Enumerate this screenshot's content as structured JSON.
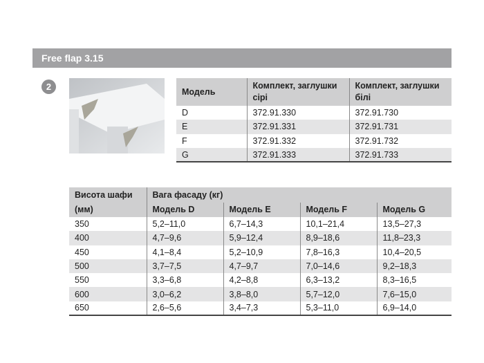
{
  "title": "Free flap 3.15",
  "badge": "2",
  "models_table": {
    "headers": [
      "Модель",
      "Комплект, заглушки сірі",
      "Комплект, заглушки білі"
    ],
    "rows": [
      [
        "D",
        "372.91.330",
        "372.91.730"
      ],
      [
        "E",
        "372.91.331",
        "372.91.731"
      ],
      [
        "F",
        "372.91.332",
        "372.91.732"
      ],
      [
        "G",
        "372.91.333",
        "372.91.733"
      ]
    ]
  },
  "weight_table": {
    "height_header": "Висота шафи (мм)",
    "group_header": "Вага фасаду (кг)",
    "model_headers": [
      "Модель D",
      "Модель E",
      "Модель F",
      "Модель G"
    ],
    "rows": [
      [
        "350",
        "5,2–11,0",
        "6,7–14,3",
        "10,1–21,4",
        "13,5–27,3"
      ],
      [
        "400",
        "4,7–9,6",
        "5,9–12,4",
        "8,9–18,6",
        "11,8–23,3"
      ],
      [
        "450",
        "4,1–8,4",
        "5,2–10,9",
        "7,8–16,3",
        "10,4–20,5"
      ],
      [
        "500",
        "3,7–7,5",
        "4,7–9,7",
        "7,0–14,6",
        "9,2–18,3"
      ],
      [
        "550",
        "3,3–6,8",
        "4,2–8,8",
        "6,3–13,2",
        "8,3–16,5"
      ],
      [
        "600",
        "3,0–6,2",
        "3,8–8,0",
        "5,7–12,0",
        "7,6–15,0"
      ],
      [
        "650",
        "2,6–5,6",
        "3,4–7,3",
        "5,3–11,0",
        "6,9–14,0"
      ]
    ]
  }
}
